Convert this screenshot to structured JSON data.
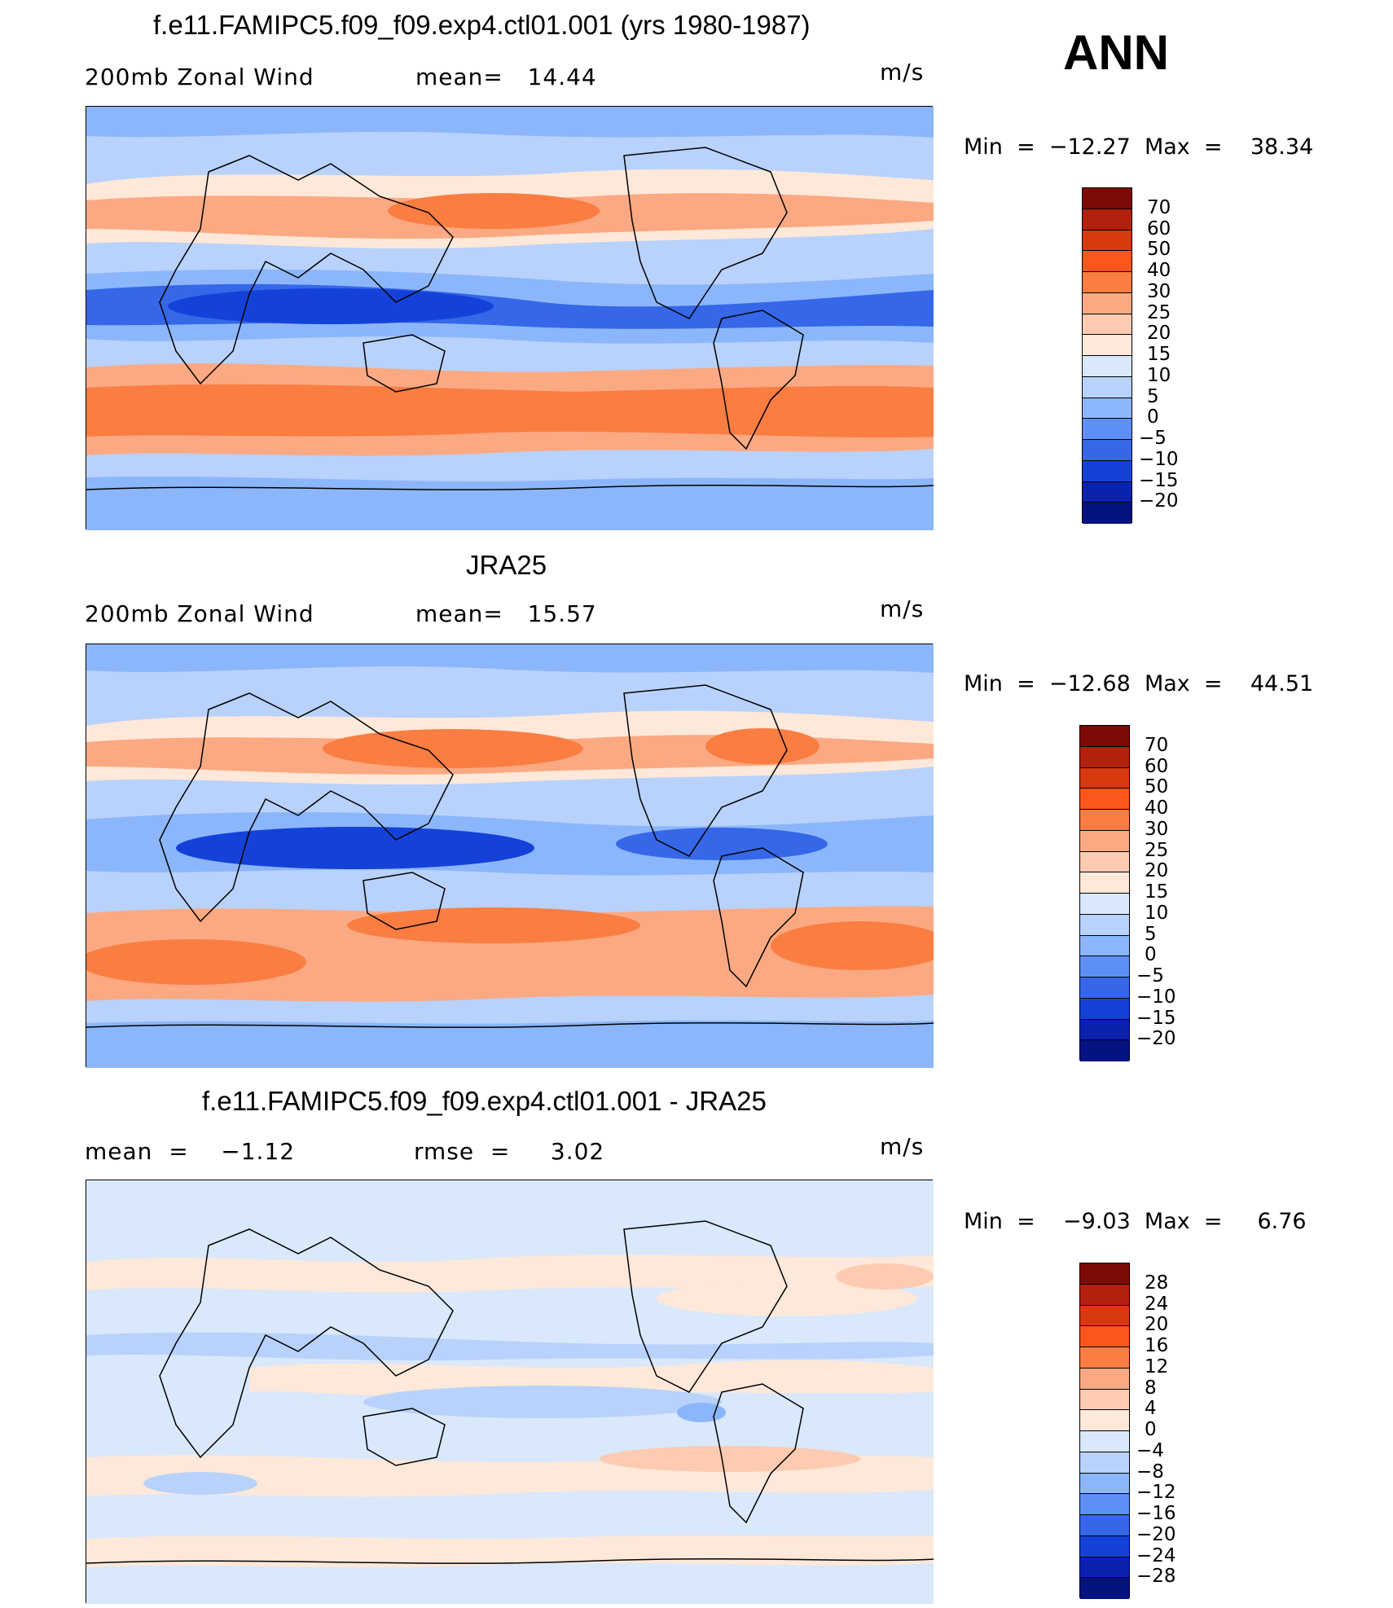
{
  "season": "ANN",
  "chart_data": [
    {
      "type": "heatmap",
      "title": "f.e11.FAMIPC5.f09_f09.exp4.ctl01.001 (yrs 1980-1987)",
      "left_label": "200mb Zonal Wind",
      "mid_label": "mean=   14.44",
      "units": "m/s",
      "min_max": "Min  =  −12.27  Max  =    38.34",
      "min": -12.27,
      "max": 38.34,
      "mean": 14.44,
      "colorbar_levels": [
        "70",
        "60",
        "50",
        "40",
        "30",
        "25",
        "20",
        "15",
        "10",
        "5",
        "0",
        "−5",
        "−10",
        "−15",
        "−20"
      ],
      "colorbar_colors": [
        "#7d0a04",
        "#b3200d",
        "#d8390e",
        "#fb561c",
        "#fa7d42",
        "#fba982",
        "#fdcbb2",
        "#fde8d9",
        "#d9e8fb",
        "#b8d2fb",
        "#8cb6fb",
        "#5e8ff4",
        "#3567e8",
        "#1442d9",
        "#0a22b0",
        "#041282"
      ]
    },
    {
      "type": "heatmap",
      "title": "JRA25",
      "left_label": "200mb Zonal Wind",
      "mid_label": "mean=   15.57",
      "units": "m/s",
      "min_max": "Min  =  −12.68  Max  =    44.51",
      "min": -12.68,
      "max": 44.51,
      "mean": 15.57,
      "colorbar_levels": [
        "70",
        "60",
        "50",
        "40",
        "30",
        "25",
        "20",
        "15",
        "10",
        "5",
        "0",
        "−5",
        "−10",
        "−15",
        "−20"
      ],
      "colorbar_colors": [
        "#7d0a04",
        "#b3200d",
        "#d8390e",
        "#fb561c",
        "#fa7d42",
        "#fba982",
        "#fdcbb2",
        "#fde8d9",
        "#d9e8fb",
        "#b8d2fb",
        "#8cb6fb",
        "#5e8ff4",
        "#3567e8",
        "#1442d9",
        "#0a22b0",
        "#041282"
      ]
    },
    {
      "type": "heatmap",
      "title": "f.e11.FAMIPC5.f09_f09.exp4.ctl01.001 - JRA25",
      "left_label": "mean  =    −1.12",
      "mid_label": "rmse  =     3.02",
      "units": "m/s",
      "min_max": "Min  =    −9.03  Max  =     6.76",
      "min": -9.03,
      "max": 6.76,
      "mean": -1.12,
      "rmse": 3.02,
      "colorbar_levels": [
        "28",
        "24",
        "20",
        "16",
        "12",
        "8",
        "4",
        "0",
        "−4",
        "−8",
        "−12",
        "−16",
        "−20",
        "−24",
        "−28"
      ],
      "colorbar_colors": [
        "#7d0a04",
        "#b3200d",
        "#d8390e",
        "#fb561c",
        "#fa7d42",
        "#fba982",
        "#fdcbb2",
        "#fde8d9",
        "#d9e8fb",
        "#b8d2fb",
        "#8cb6fb",
        "#5e8ff4",
        "#3567e8",
        "#1442d9",
        "#0a22b0",
        "#041282"
      ]
    }
  ]
}
